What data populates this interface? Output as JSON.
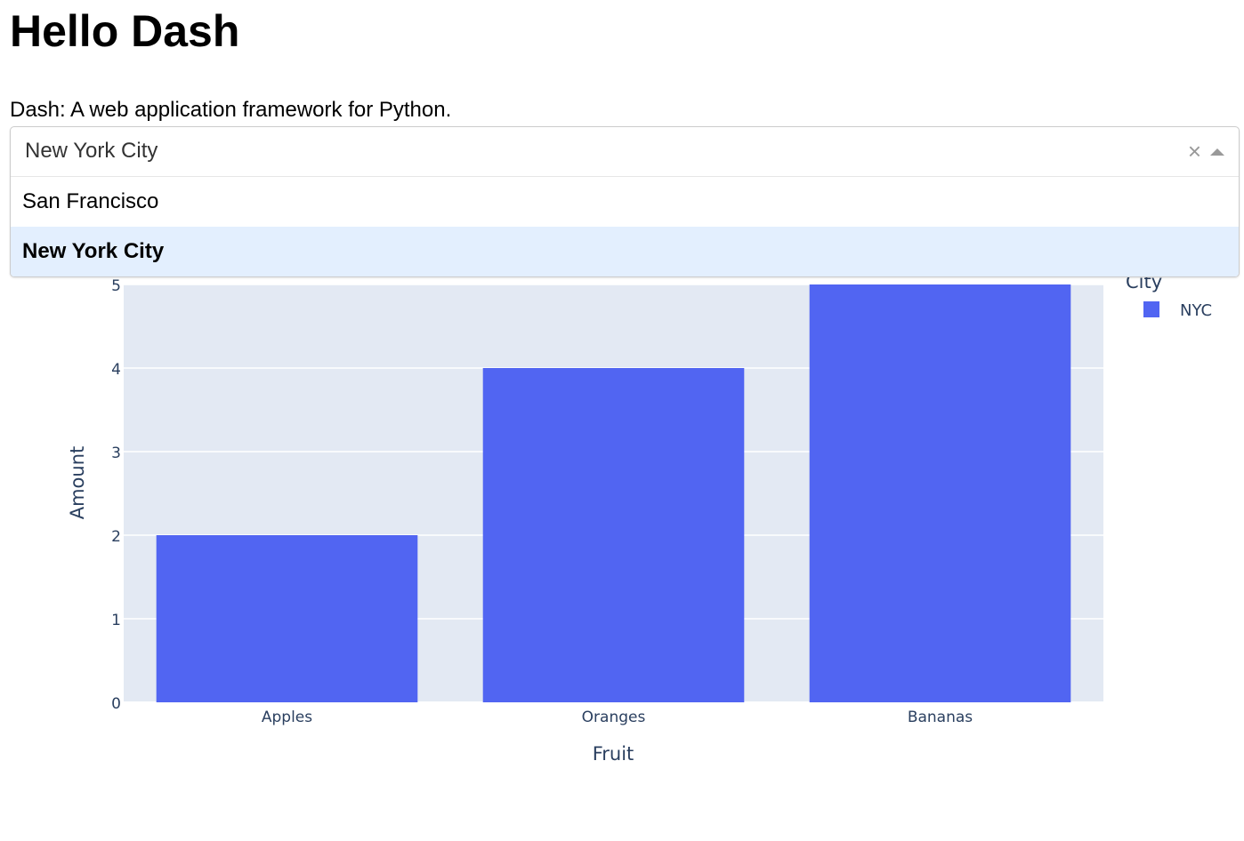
{
  "header": {
    "title": "Hello Dash",
    "subtitle": "Dash: A web application framework for Python."
  },
  "dropdown": {
    "value": "New York City",
    "clear_icon": "×",
    "options": [
      "San Francisco",
      "New York City"
    ],
    "selected_index": 1
  },
  "chart_data": {
    "type": "bar",
    "categories": [
      "Apples",
      "Oranges",
      "Bananas"
    ],
    "series": [
      {
        "name": "NYC",
        "values": [
          2,
          4,
          5
        ],
        "color": "#5165f2"
      }
    ],
    "xlabel": "Fruit",
    "ylabel": "Amount",
    "ylim": [
      0,
      5
    ],
    "yticks": [
      0,
      1,
      2,
      3,
      4,
      5
    ],
    "legend_title": "City",
    "legend_position": "right",
    "grid": true,
    "plot_bg": "#e3e9f3"
  }
}
